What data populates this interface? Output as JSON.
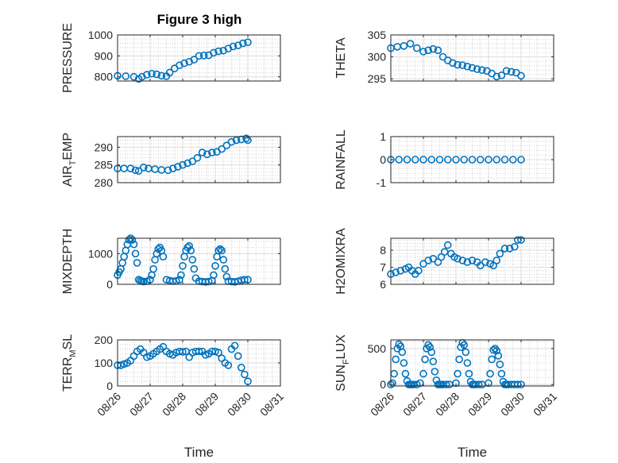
{
  "figure": {
    "title": "Figure 3 high"
  },
  "chart_data": [
    {
      "type": "scatter",
      "ylabel": "PRESSURE",
      "ylim": [
        780,
        1000
      ],
      "yticks": [
        800,
        900,
        1000
      ],
      "xlim": [
        0,
        5
      ],
      "xticks": [
        "08/26",
        "08/27",
        "08/28",
        "08/29",
        "08/30",
        "08/31"
      ],
      "xlabel": "",
      "grid": true,
      "marker_color": "#0072bd",
      "x": [
        0,
        0.25,
        0.5,
        0.65,
        0.75,
        0.9,
        1.05,
        1.2,
        1.35,
        1.5,
        1.6,
        1.75,
        1.9,
        2.05,
        2.2,
        2.35,
        2.5,
        2.65,
        2.8,
        2.95,
        3.1,
        3.25,
        3.4,
        3.55,
        3.7,
        3.85,
        4.0
      ],
      "y": [
        805,
        803,
        800,
        790,
        800,
        810,
        815,
        812,
        805,
        803,
        820,
        840,
        855,
        865,
        872,
        882,
        900,
        902,
        903,
        915,
        922,
        925,
        935,
        945,
        950,
        960,
        965
      ]
    },
    {
      "type": "scatter",
      "ylabel": "THETA",
      "ylim": [
        294.5,
        305
      ],
      "yticks": [
        295,
        300,
        305
      ],
      "xlim": [
        0,
        5
      ],
      "xticks": [
        "08/26",
        "08/27",
        "08/28",
        "08/29",
        "08/30",
        "08/31"
      ],
      "xlabel": "",
      "grid": true,
      "marker_color": "#0072bd",
      "x": [
        0,
        0.2,
        0.4,
        0.6,
        0.8,
        1.0,
        1.15,
        1.3,
        1.45,
        1.6,
        1.75,
        1.9,
        2.05,
        2.2,
        2.35,
        2.5,
        2.65,
        2.8,
        2.95,
        3.1,
        3.25,
        3.4,
        3.55,
        3.7,
        3.85,
        4.0
      ],
      "y": [
        302,
        302.3,
        302.5,
        303,
        302,
        301.2,
        301.5,
        301.8,
        301.5,
        300,
        299.2,
        298.6,
        298.2,
        298.1,
        297.8,
        297.5,
        297.2,
        297,
        296.8,
        296.2,
        295.5,
        295.8,
        296.8,
        296.6,
        296.4,
        295.7
      ]
    },
    {
      "type": "scatter",
      "ylabel": "AIR_TEMP",
      "ylabel_main": "AIR",
      "ylabel_sub": "T",
      "ylabel_rest": "EMP",
      "ylim": [
        280,
        293
      ],
      "yticks": [
        280,
        285,
        290
      ],
      "xlim": [
        0,
        5
      ],
      "xticks": [
        "08/26",
        "08/27",
        "08/28",
        "08/29",
        "08/30",
        "08/31"
      ],
      "xlabel": "",
      "grid": true,
      "marker_color": "#0072bd",
      "x": [
        0,
        0.2,
        0.4,
        0.55,
        0.65,
        0.8,
        0.95,
        1.15,
        1.35,
        1.55,
        1.7,
        1.85,
        2.0,
        2.15,
        2.3,
        2.45,
        2.6,
        2.75,
        2.9,
        3.05,
        3.2,
        3.35,
        3.5,
        3.65,
        3.8,
        3.95,
        4.0
      ],
      "y": [
        284,
        284,
        284,
        283.5,
        283.3,
        284.3,
        284,
        283.8,
        283.6,
        283.5,
        284,
        284.5,
        285,
        285.5,
        286,
        287,
        288.5,
        288,
        288.5,
        288.7,
        289.5,
        290.5,
        291.5,
        292,
        292.2,
        292.5,
        292
      ]
    },
    {
      "type": "scatter",
      "ylabel": "RAINFALL",
      "ylim": [
        -1,
        1
      ],
      "yticks": [
        -1,
        0,
        1
      ],
      "xlim": [
        0,
        5
      ],
      "xticks": [
        "08/26",
        "08/27",
        "08/28",
        "08/29",
        "08/30",
        "08/31"
      ],
      "xlabel": "",
      "grid": true,
      "marker_color": "#0072bd",
      "x": [
        0,
        0.25,
        0.5,
        0.75,
        1.0,
        1.25,
        1.5,
        1.75,
        2.0,
        2.25,
        2.5,
        2.75,
        3.0,
        3.25,
        3.5,
        3.75,
        4.0
      ],
      "y": [
        0,
        0,
        0,
        0,
        0,
        0,
        0,
        0,
        0,
        0,
        0,
        0,
        0,
        0,
        0,
        0,
        0
      ]
    },
    {
      "type": "scatter",
      "ylabel": "MIXDEPTH",
      "ylim": [
        0,
        1500
      ],
      "yticks": [
        0,
        1000
      ],
      "xlim": [
        0,
        5
      ],
      "xticks": [
        "08/26",
        "08/27",
        "08/28",
        "08/29",
        "08/30",
        "08/31"
      ],
      "xlabel": "",
      "grid": true,
      "marker_color": "#0072bd",
      "x": [
        0,
        0.05,
        0.1,
        0.15,
        0.2,
        0.25,
        0.3,
        0.35,
        0.4,
        0.45,
        0.5,
        0.55,
        0.6,
        0.65,
        0.7,
        0.75,
        0.8,
        0.9,
        1.0,
        1.05,
        1.1,
        1.15,
        1.2,
        1.25,
        1.3,
        1.35,
        1.4,
        1.5,
        1.6,
        1.7,
        1.8,
        1.9,
        1.95,
        2.0,
        2.05,
        2.1,
        2.15,
        2.2,
        2.25,
        2.3,
        2.35,
        2.4,
        2.5,
        2.6,
        2.7,
        2.8,
        2.9,
        2.95,
        3.0,
        3.05,
        3.1,
        3.15,
        3.2,
        3.25,
        3.3,
        3.35,
        3.4,
        3.5,
        3.6,
        3.7,
        3.8,
        3.9,
        4.0
      ],
      "y": [
        300,
        400,
        500,
        700,
        900,
        1100,
        1300,
        1450,
        1500,
        1450,
        1300,
        1000,
        700,
        150,
        120,
        100,
        90,
        100,
        150,
        300,
        500,
        800,
        1000,
        1150,
        1200,
        1100,
        900,
        150,
        120,
        100,
        110,
        150,
        300,
        600,
        900,
        1100,
        1200,
        1250,
        1100,
        800,
        500,
        200,
        100,
        90,
        80,
        90,
        120,
        300,
        600,
        900,
        1100,
        1150,
        1100,
        800,
        500,
        250,
        100,
        90,
        80,
        100,
        130,
        150,
        150
      ]
    },
    {
      "type": "scatter",
      "ylabel": "H2OMIXRA",
      "ylim": [
        6,
        8.7
      ],
      "yticks": [
        6,
        7,
        8
      ],
      "xlim": [
        0,
        5
      ],
      "xticks": [
        "08/26",
        "08/27",
        "08/28",
        "08/29",
        "08/30",
        "08/31"
      ],
      "xlabel": "",
      "grid": true,
      "marker_color": "#0072bd",
      "x": [
        0,
        0.15,
        0.3,
        0.45,
        0.55,
        0.65,
        0.75,
        0.85,
        1.0,
        1.15,
        1.3,
        1.45,
        1.55,
        1.65,
        1.75,
        1.85,
        1.95,
        2.05,
        2.2,
        2.35,
        2.5,
        2.65,
        2.75,
        2.9,
        3.05,
        3.15,
        3.25,
        3.35,
        3.5,
        3.65,
        3.8,
        3.9,
        4.0
      ],
      "y": [
        6.6,
        6.7,
        6.8,
        6.9,
        7.0,
        6.8,
        6.6,
        6.8,
        7.2,
        7.4,
        7.5,
        7.3,
        7.6,
        7.9,
        8.3,
        7.8,
        7.6,
        7.5,
        7.4,
        7.3,
        7.4,
        7.3,
        7.1,
        7.3,
        7.2,
        7.1,
        7.4,
        7.8,
        8.1,
        8.1,
        8.2,
        8.6,
        8.6
      ]
    },
    {
      "type": "scatter",
      "ylabel": "TERR_MSL",
      "ylabel_main": "TERR",
      "ylabel_sub": "M",
      "ylabel_rest": "SL",
      "ylim": [
        0,
        200
      ],
      "yticks": [
        0,
        100,
        200
      ],
      "xlim": [
        0,
        5
      ],
      "xticks": [
        "08/26",
        "08/27",
        "08/28",
        "08/29",
        "08/30",
        "08/31"
      ],
      "xlabel": "Time",
      "grid": true,
      "marker_color": "#0072bd",
      "x": [
        0,
        0.1,
        0.2,
        0.3,
        0.4,
        0.5,
        0.6,
        0.7,
        0.8,
        0.9,
        1.0,
        1.1,
        1.2,
        1.3,
        1.4,
        1.5,
        1.6,
        1.7,
        1.8,
        1.9,
        2.0,
        2.1,
        2.2,
        2.3,
        2.4,
        2.5,
        2.6,
        2.7,
        2.8,
        2.9,
        3.0,
        3.1,
        3.2,
        3.3,
        3.4,
        3.5,
        3.6,
        3.7,
        3.8,
        3.9,
        4.0
      ],
      "y": [
        90,
        90,
        95,
        100,
        110,
        130,
        150,
        160,
        145,
        125,
        130,
        140,
        150,
        160,
        170,
        150,
        140,
        135,
        145,
        150,
        148,
        150,
        125,
        145,
        150,
        150,
        150,
        135,
        140,
        150,
        150,
        145,
        120,
        100,
        90,
        160,
        175,
        130,
        80,
        50,
        20
      ]
    },
    {
      "type": "scatter",
      "ylabel": "SUN_FLUX",
      "ylabel_main": "SUN",
      "ylabel_sub": "F",
      "ylabel_rest": "LUX",
      "ylim": [
        -20,
        620
      ],
      "yticks": [
        0,
        500
      ],
      "xlim": [
        0,
        5
      ],
      "xticks": [
        "08/26",
        "08/27",
        "08/28",
        "08/29",
        "08/30",
        "08/31"
      ],
      "xlabel": "Time",
      "grid": true,
      "marker_color": "#0072bd",
      "x": [
        0,
        0.05,
        0.1,
        0.15,
        0.2,
        0.25,
        0.3,
        0.35,
        0.4,
        0.45,
        0.5,
        0.55,
        0.6,
        0.65,
        0.7,
        0.8,
        0.9,
        1.0,
        1.05,
        1.1,
        1.15,
        1.2,
        1.25,
        1.3,
        1.35,
        1.4,
        1.45,
        1.5,
        1.55,
        1.6,
        1.7,
        1.8,
        2.0,
        2.05,
        2.1,
        2.15,
        2.2,
        2.25,
        2.3,
        2.35,
        2.4,
        2.45,
        2.5,
        2.55,
        2.6,
        2.7,
        2.8,
        3.0,
        3.05,
        3.1,
        3.15,
        3.2,
        3.25,
        3.3,
        3.35,
        3.4,
        3.45,
        3.5,
        3.55,
        3.6,
        3.7,
        3.8,
        3.9,
        4.0
      ],
      "y": [
        0,
        20,
        150,
        350,
        500,
        560,
        530,
        450,
        300,
        150,
        50,
        0,
        0,
        0,
        0,
        0,
        20,
        150,
        350,
        500,
        550,
        520,
        450,
        320,
        180,
        60,
        0,
        0,
        0,
        0,
        0,
        0,
        20,
        150,
        350,
        520,
        580,
        550,
        450,
        300,
        150,
        40,
        0,
        0,
        0,
        0,
        0,
        20,
        150,
        350,
        480,
        500,
        470,
        400,
        280,
        150,
        40,
        0,
        0,
        0,
        0,
        0,
        0,
        0
      ]
    }
  ]
}
